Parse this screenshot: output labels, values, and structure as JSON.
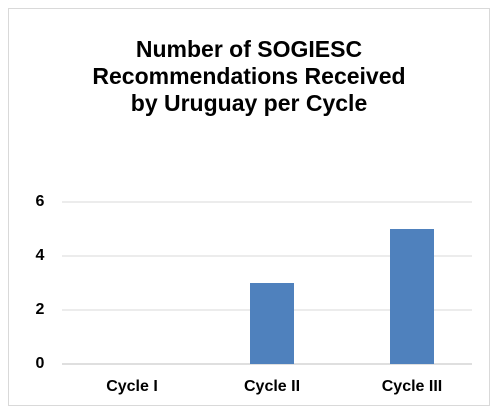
{
  "chart_data": {
    "type": "bar",
    "title": "Number of SOGIESC Recommendations Received by Uruguay per Cycle",
    "categories": [
      "Cycle I",
      "Cycle II",
      "Cycle III"
    ],
    "values": [
      0,
      3,
      5
    ],
    "color": "#4f81bd",
    "ylim": [
      0,
      6
    ],
    "yticks": [
      0,
      2,
      4,
      6
    ],
    "grid": true
  }
}
